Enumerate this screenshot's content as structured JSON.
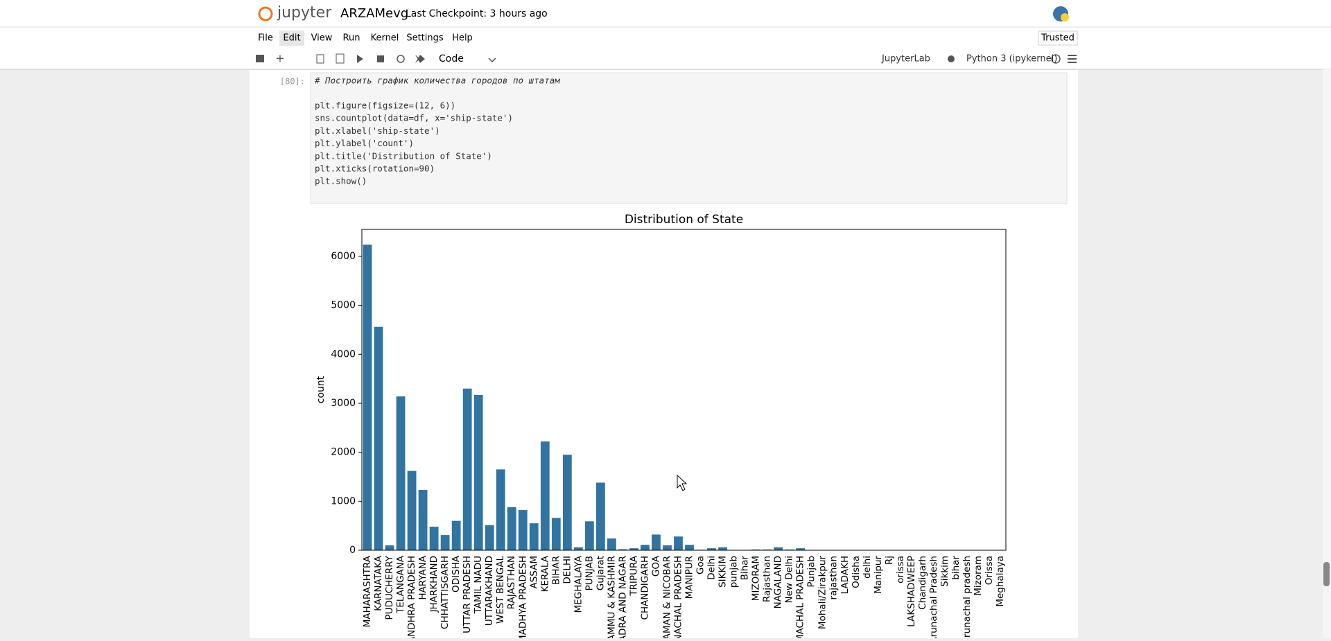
{
  "header": {
    "logo": "jupyter",
    "notebook": "ARZAMevg",
    "checkpoint": "Last Checkpoint: 3 hours ago",
    "trusted": "Trusted"
  },
  "menu": [
    "File",
    "Edit",
    "View",
    "Run",
    "Kernel",
    "Settings",
    "Help"
  ],
  "toolbar": {
    "cell_type": "Code",
    "jupyterlab": "JupyterLab",
    "kernel": "Python 3 (ipykernel)"
  },
  "cell": {
    "prompt": "[80]:",
    "code": [
      "# Построить график количества городов по штатам",
      "plt.figure(figsize=(12, 6))",
      "sns.countplot(data=df, x='ship-state')",
      "plt.xlabel('ship-state')",
      "plt.ylabel('count')",
      "plt.title('Distribution of State')",
      "plt.xticks(rotation=90)",
      "plt.show()"
    ]
  },
  "chart_data": {
    "type": "bar",
    "title": "Distribution of State",
    "ylabel": "count",
    "color": "#3274a1",
    "categories": [
      "MAHARASHTRA",
      "KARNATAKA",
      "PUDUCHERRY",
      "TELANGANA",
      "ANDHRA PRADESH",
      "HARYANA",
      "JHARKHAND",
      "CHHATTISGARH",
      "ODISHA",
      "UTTAR PRADESH",
      "TAMIL NADU",
      "UTTARAKHAND",
      "WEST BENGAL",
      "RAJASTHAN",
      "MADHYA PRADESH",
      "ASSAM",
      "KERALA",
      "BIHAR",
      "DELHI",
      "MEGHALAYA",
      "PUNJAB",
      "Gujarat",
      "JAMMU & KASHMIR",
      "DADRA AND NAGAR",
      "TRIPURA",
      "CHANDIGARH",
      "GOA",
      "ANDAMAN & NICOBAR",
      "ARUNACHAL PRADESH",
      "MANIPUR",
      "Goa",
      "Delhi",
      "SIKKIM",
      "punjab",
      "Bihar",
      "MIZORAM",
      "Rajasthan",
      "NAGALAND",
      "New Delhi",
      "HIMACHAL PRADESH",
      "Punjab",
      "Mohali/Zirakpur",
      "rajasthan",
      "LADAKH",
      "Odisha",
      "delhi",
      "Manipur",
      "Rj",
      "orissa",
      "LAKSHADWEEP",
      "Chandigarh",
      "Arunachal Pradesh",
      "Sikkim",
      "bihar",
      "arunachal pradesh",
      "Mizoram",
      "Orissa",
      "Meghalaya"
    ],
    "values": [
      6240,
      4560,
      100,
      3140,
      1620,
      1230,
      480,
      310,
      600,
      3300,
      3170,
      510,
      1650,
      880,
      820,
      550,
      2220,
      660,
      1950,
      60,
      590,
      1380,
      240,
      20,
      40,
      110,
      320,
      100,
      280,
      110,
      10,
      40,
      60,
      5,
      5,
      15,
      15,
      60,
      15,
      40,
      5,
      2,
      2,
      3,
      2,
      2,
      2,
      1,
      1,
      2,
      1,
      1,
      1,
      1,
      1,
      1,
      1,
      1
    ],
    "ylim": [
      0,
      6550
    ],
    "yticks": [
      0,
      1000,
      2000,
      3000,
      4000,
      5000,
      6000
    ]
  }
}
